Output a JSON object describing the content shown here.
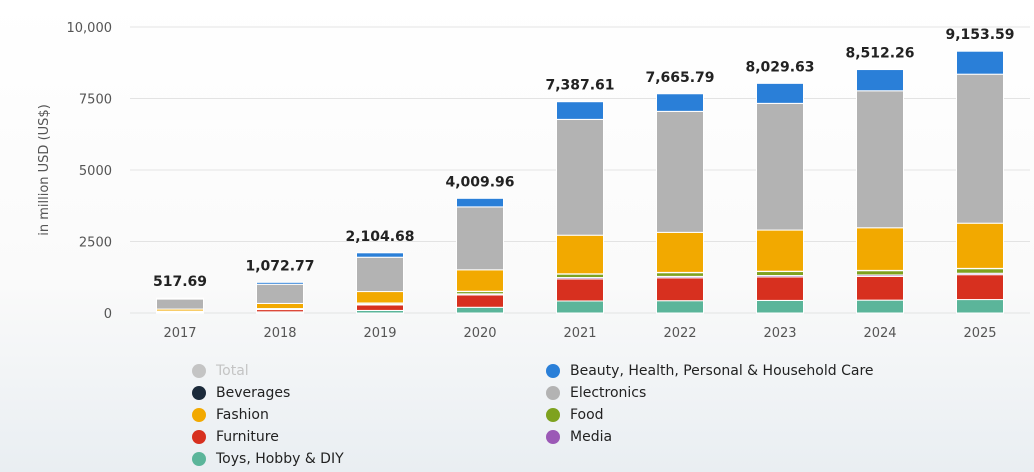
{
  "chart_data": {
    "type": "bar",
    "stacked": true,
    "ylabel": "in million USD (US$)",
    "ylim": [
      0,
      10000
    ],
    "yticks": [
      {
        "value": 0,
        "label": "0"
      },
      {
        "value": 2500,
        "label": "2500"
      },
      {
        "value": 5000,
        "label": "5000"
      },
      {
        "value": 7500,
        "label": "7500"
      },
      {
        "value": 10000,
        "label": "10,000"
      }
    ],
    "grid": true,
    "legend_placement": "bottom",
    "categories": [
      "2017",
      "2018",
      "2019",
      "2020",
      "2021",
      "2022",
      "2023",
      "2024",
      "2025"
    ],
    "totals": [
      517.69,
      1072.77,
      2104.68,
      4009.96,
      7387.61,
      7665.79,
      8029.63,
      8512.26,
      9153.59
    ],
    "total_labels": [
      "517.69",
      "1,072.77",
      "2,104.68",
      "4,009.96",
      "7,387.61",
      "7,665.79",
      "8,029.63",
      "8,512.26",
      "9,153.59"
    ],
    "series": [
      {
        "name": "Toys, Hobby & DIY",
        "color": "#5bb59a",
        "values": [
          20,
          40,
          90,
          200,
          420,
          430,
          440,
          450,
          470
        ]
      },
      {
        "name": "Furniture",
        "color": "#d7301f",
        "values": [
          30,
          80,
          190,
          430,
          770,
          800,
          820,
          830,
          870
        ]
      },
      {
        "name": "Media",
        "color": "#9b59b6",
        "values": [
          5,
          10,
          20,
          40,
          50,
          50,
          50,
          50,
          50
        ]
      },
      {
        "name": "Food",
        "color": "#7ea21f",
        "values": [
          10,
          20,
          40,
          80,
          120,
          130,
          140,
          150,
          160
        ]
      },
      {
        "name": "Beverages",
        "color": "#1b2a3a",
        "values": [
          2,
          5,
          10,
          10,
          10,
          10,
          10,
          10,
          10
        ]
      },
      {
        "name": "Fashion",
        "color": "#f2a900",
        "values": [
          70,
          180,
          400,
          750,
          1350,
          1400,
          1440,
          1490,
          1580
        ]
      },
      {
        "name": "Electronics",
        "color": "#b3b3b3",
        "values": [
          350,
          670,
          1200,
          2200,
          4050,
          4230,
          4430,
          4790,
          5210
        ]
      },
      {
        "name": "Beauty, Health, Personal & Household Care",
        "color": "#2a7fd8",
        "values": [
          30.69,
          67.77,
          154.68,
          299.96,
          617.61,
          615.79,
          699.63,
          742.26,
          803.59
        ]
      }
    ]
  },
  "legend": {
    "left": [
      {
        "label": "Total",
        "color": "#c4c4c4",
        "dim": true
      },
      {
        "label": "Beverages",
        "color": "#1b2a3a",
        "dim": false
      },
      {
        "label": "Fashion",
        "color": "#f2a900",
        "dim": false
      },
      {
        "label": "Furniture",
        "color": "#d7301f",
        "dim": false
      },
      {
        "label": "Toys, Hobby & DIY",
        "color": "#5bb59a",
        "dim": false
      }
    ],
    "right": [
      {
        "label": "Beauty, Health, Personal & Household Care",
        "color": "#2a7fd8",
        "dim": false
      },
      {
        "label": "Electronics",
        "color": "#b3b3b3",
        "dim": false
      },
      {
        "label": "Food",
        "color": "#7ea21f",
        "dim": false
      },
      {
        "label": "Media",
        "color": "#9b59b6",
        "dim": false
      }
    ]
  }
}
